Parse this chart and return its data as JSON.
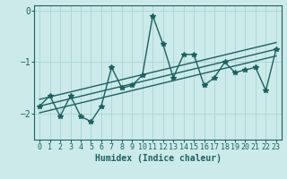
{
  "title": "",
  "xlabel": "Humidex (Indice chaleur)",
  "ylabel": "",
  "background_color": "#cceaea",
  "grid_color": "#aad4d4",
  "line_color": "#1e6060",
  "xlim": [
    -0.5,
    23.5
  ],
  "ylim": [
    -2.5,
    0.1
  ],
  "xticks": [
    0,
    1,
    2,
    3,
    4,
    5,
    6,
    7,
    8,
    9,
    10,
    11,
    12,
    13,
    14,
    15,
    16,
    17,
    18,
    19,
    20,
    21,
    22,
    23
  ],
  "yticks": [
    -2,
    -1,
    0
  ],
  "x_data": [
    0,
    1,
    2,
    3,
    4,
    5,
    6,
    7,
    8,
    9,
    10,
    11,
    12,
    13,
    14,
    15,
    16,
    17,
    18,
    19,
    20,
    21,
    22,
    23
  ],
  "y_data": [
    -1.85,
    -1.65,
    -2.05,
    -1.65,
    -2.05,
    -2.15,
    -1.85,
    -1.1,
    -1.5,
    -1.45,
    -1.25,
    -0.1,
    -0.65,
    -1.3,
    -0.85,
    -0.85,
    -1.45,
    -1.3,
    -1.0,
    -1.2,
    -1.15,
    -1.1,
    -1.55,
    -0.75
  ],
  "reg_line1_x": [
    0,
    23
  ],
  "reg_line1_y": [
    -1.85,
    -0.75
  ],
  "reg_line2_x": [
    0,
    23
  ],
  "reg_line2_y": [
    -1.72,
    -0.62
  ],
  "reg_line3_x": [
    0,
    23
  ],
  "reg_line3_y": [
    -1.98,
    -0.88
  ],
  "marker": "*",
  "markersize": 4,
  "linewidth": 1.0,
  "tick_fontsize": 6,
  "label_fontsize": 7
}
